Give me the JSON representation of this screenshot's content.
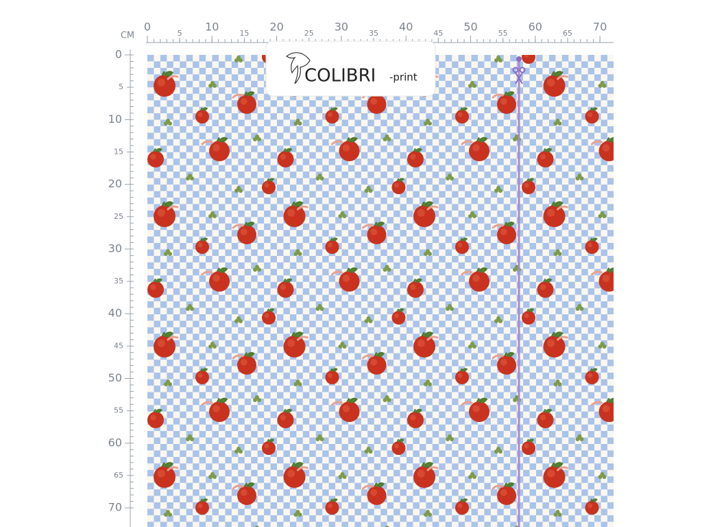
{
  "ruler": {
    "unit": "CM",
    "top_labels": [
      0,
      5,
      10,
      15,
      20,
      25,
      30,
      35,
      40,
      45,
      50,
      55,
      60,
      65,
      70
    ],
    "left_labels": [
      0,
      5,
      10,
      15,
      20,
      25,
      30,
      35,
      40,
      45,
      50,
      55,
      60,
      65,
      70
    ]
  },
  "logo": {
    "name": "COLIBRI",
    "suffix": "-print"
  }
}
